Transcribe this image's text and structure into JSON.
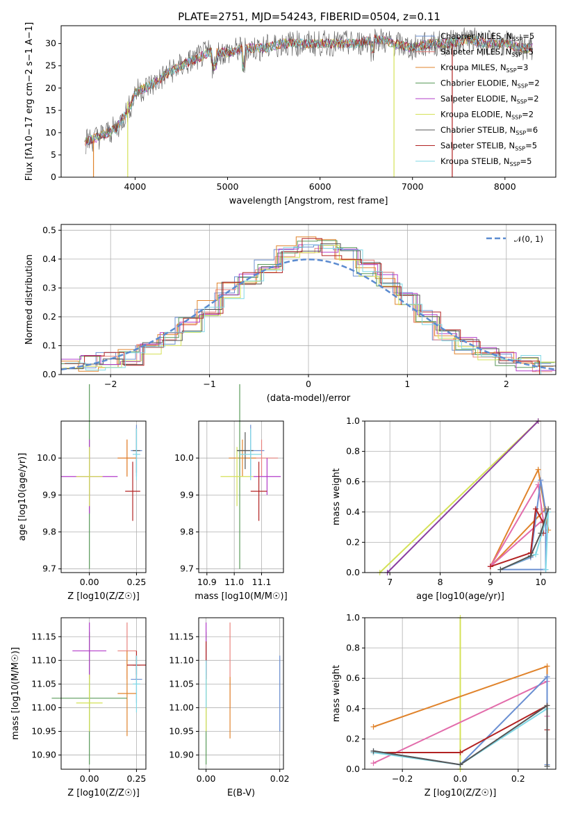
{
  "figure": {
    "title": "PLATE=2751, MJD=54243, FIBERID=0504, z=0.11"
  },
  "panels": {
    "spectrum": {
      "xlabel": "wavelength [Angstrom, rest frame]",
      "ylabel": "Flux [f_λ 10^-17 erg cm^-2 s^-1 A^-1]",
      "xticks": [
        "4000",
        "5000",
        "6000",
        "7000",
        "8000"
      ],
      "yticks": [
        "0",
        "5",
        "10",
        "15",
        "20",
        "25",
        "30"
      ]
    },
    "residuals": {
      "xlabel": "(data-model)/error",
      "ylabel": "Normed distribution",
      "xticks": [
        "−2",
        "−1",
        "0",
        "1",
        "2"
      ],
      "yticks": [
        "0.0",
        "0.1",
        "0.2",
        "0.3",
        "0.4",
        "0.5"
      ],
      "legend": "𝒩(0, 1)"
    },
    "age_z": {
      "xlabel": "Z [log10(Z/Z☉)]",
      "ylabel": "age [log10(age/yr)]",
      "xticks": [
        "0.00",
        "0.25"
      ],
      "yticks": [
        "9.7",
        "9.8",
        "9.9",
        "10.0"
      ]
    },
    "age_mass": {
      "xlabel": "mass [log10(M/M☉)]",
      "xticks": [
        "10.9",
        "11.0",
        "11.1"
      ],
      "yticks": [
        "9.7",
        "9.8",
        "9.9",
        "10.0"
      ]
    },
    "mw_age": {
      "xlabel": "age [log10(age/yr)]",
      "ylabel": "mass weight",
      "xticks": [
        "7",
        "8",
        "9",
        "10"
      ],
      "yticks": [
        "0.0",
        "0.2",
        "0.4",
        "0.6",
        "0.8",
        "1.0"
      ]
    },
    "mass_z": {
      "xlabel": "Z [log10(Z/Z☉)]",
      "ylabel": "mass [log10(M/M☉)]",
      "xticks": [
        "0.00",
        "0.25"
      ],
      "yticks": [
        "10.90",
        "10.95",
        "11.00",
        "11.05",
        "11.10",
        "11.15"
      ]
    },
    "mass_ebv": {
      "xlabel": "E(B-V)",
      "xticks": [
        "0.00",
        "0.02"
      ],
      "yticks": [
        "10.90",
        "10.95",
        "11.00",
        "11.05",
        "11.10",
        "11.15"
      ]
    },
    "mw_z": {
      "xlabel": "Z [log10(Z/Z☉)]",
      "ylabel": "mass weight",
      "xticks": [
        "−0.2",
        "0.0",
        "0.2"
      ],
      "yticks": [
        "0.0",
        "0.2",
        "0.4",
        "0.6",
        "0.8",
        "1.0"
      ]
    }
  },
  "chart_data": [
    {
      "type": "line",
      "title": "PLATE=2751, MJD=54243, FIBERID=0504, z=0.11",
      "xlabel": "wavelength [Angstrom, rest frame]",
      "ylabel": "Flux [fλ10−17 erg cm−2 s−1 A−1]",
      "xlim": [
        3200,
        8550
      ],
      "ylim": [
        0,
        34
      ],
      "legend_position": "top-right",
      "series": [
        {
          "name": "Chabrier MILES, N_SSP=5",
          "color": "#6a8fd2",
          "x": [
            3450,
            3600,
            3800,
            3950,
            4000,
            4200,
            4400,
            4600,
            4800,
            5000,
            5200,
            5400,
            5600,
            5800,
            6000,
            6200,
            6400,
            6600,
            6800,
            7000,
            7200,
            7400,
            7600,
            7800,
            8000,
            8200,
            8300
          ],
          "y": [
            8,
            9,
            11,
            16,
            19,
            21,
            24,
            26,
            28,
            28,
            29,
            29,
            30,
            30,
            30,
            30,
            30,
            31,
            30,
            29,
            30,
            30,
            31,
            30,
            30,
            29,
            29
          ]
        },
        {
          "name": "Salpeter MILES, N_SSP=5",
          "color": "#e8837e"
        },
        {
          "name": "Kroupa MILES, N_SSP=3",
          "color": "#e0832b"
        },
        {
          "name": "Chabrier ELODIE, N_SSP=2",
          "color": "#5a9a5a"
        },
        {
          "name": "Salpeter ELODIE, N_SSP=2",
          "color": "#b23cc9"
        },
        {
          "name": "Kroupa ELODIE, N_SSP=2",
          "color": "#d4e157"
        },
        {
          "name": "Chabrier STELIB, N_SSP=6",
          "color": "#555555"
        },
        {
          "name": "Salpeter STELIB, N_SSP=5",
          "color": "#b22222"
        },
        {
          "name": "Kroupa STELIB, N_SSP=5",
          "color": "#7fd8e6"
        }
      ],
      "drops_to_zero_at": [
        3550,
        3920,
        6800,
        7430
      ]
    },
    {
      "type": "line",
      "xlabel": "(data-model)/error",
      "ylabel": "Normed distribution",
      "xlim": [
        -2.5,
        2.5
      ],
      "ylim": [
        0,
        0.52
      ],
      "grid": true,
      "legend_position": "top-right",
      "series": [
        {
          "name": "𝒩(0, 1)",
          "style": "dashed",
          "color": "#5b8bd0"
        }
      ],
      "histogram_bins": [
        -2.5,
        -2.3,
        -2.1,
        -1.9,
        -1.7,
        -1.5,
        -1.3,
        -1.1,
        -0.9,
        -0.7,
        -0.5,
        -0.3,
        -0.1,
        0.1,
        0.3,
        0.5,
        0.7,
        0.9,
        1.1,
        1.3,
        1.5,
        1.7,
        1.9,
        2.1,
        2.3,
        2.5
      ],
      "histogram_values": [
        0.03,
        0.04,
        0.05,
        0.06,
        0.09,
        0.12,
        0.17,
        0.23,
        0.29,
        0.34,
        0.37,
        0.42,
        0.45,
        0.44,
        0.42,
        0.37,
        0.33,
        0.27,
        0.2,
        0.14,
        0.1,
        0.08,
        0.05,
        0.04,
        0.02
      ]
    },
    {
      "type": "scatter",
      "xlabel": "Z [log10(Z/Z☉)]",
      "ylabel": "age [log10(age/yr)]",
      "xlim": [
        -0.15,
        0.3
      ],
      "ylim": [
        9.69,
        10.1
      ],
      "grid": true,
      "points": [
        {
          "color": "#6a8fd2",
          "x": 0.25,
          "y": 10.02,
          "xerr": 0.03,
          "yerr": 0.07
        },
        {
          "color": "#e8837e",
          "x": 0.2,
          "y": 10.0,
          "xerr": 0.05,
          "yerr": 0.05
        },
        {
          "color": "#e0832b",
          "x": 0.2,
          "y": 10.0,
          "xerr": 0.05,
          "yerr": 0.05
        },
        {
          "color": "#5a9a5a",
          "x": 0.0,
          "y": 9.95,
          "xerr": 0.0,
          "yerr": 0.25
        },
        {
          "color": "#b23cc9",
          "x": 0.0,
          "y": 9.95,
          "xerr": 0.15,
          "yerr": 0.1
        },
        {
          "color": "#d4e157",
          "x": 0.0,
          "y": 9.95,
          "xerr": 0.07,
          "yerr": 0.08
        },
        {
          "color": "#555555",
          "x": 0.25,
          "y": 10.02,
          "xerr": 0.02,
          "yerr": 0.06
        },
        {
          "color": "#b22222",
          "x": 0.23,
          "y": 9.91,
          "xerr": 0.04,
          "yerr": 0.08
        },
        {
          "color": "#7fd8e6",
          "x": 0.25,
          "y": 10.01,
          "xerr": 0.02,
          "yerr": 0.07
        }
      ]
    },
    {
      "type": "scatter",
      "xlabel": "mass [log10(M/M☉)]",
      "xlim": [
        10.87,
        11.18
      ],
      "ylim": [
        9.69,
        10.1
      ],
      "grid": true,
      "points": [
        {
          "color": "#6a8fd2",
          "x": 11.06,
          "y": 10.02,
          "xerr": 0.05,
          "yerr": 0.07
        },
        {
          "color": "#e8837e",
          "x": 11.1,
          "y": 10.0,
          "xerr": 0.06,
          "yerr": 0.05
        },
        {
          "color": "#e0832b",
          "x": 11.03,
          "y": 10.0,
          "xerr": 0.05,
          "yerr": 0.05
        },
        {
          "color": "#5a9a5a",
          "x": 11.02,
          "y": 9.95,
          "xerr": 0.0,
          "yerr": 0.25
        },
        {
          "color": "#b23cc9",
          "x": 11.12,
          "y": 9.95,
          "xerr": 0.05,
          "yerr": 0.05
        },
        {
          "color": "#d4e157",
          "x": 11.01,
          "y": 9.95,
          "xerr": 0.06,
          "yerr": 0.08
        },
        {
          "color": "#555555",
          "x": 11.04,
          "y": 10.02,
          "xerr": 0.03,
          "yerr": 0.05
        },
        {
          "color": "#b22222",
          "x": 11.09,
          "y": 9.91,
          "xerr": 0.03,
          "yerr": 0.08
        },
        {
          "color": "#7fd8e6",
          "x": 11.06,
          "y": 10.01,
          "xerr": 0.04,
          "yerr": 0.07
        }
      ]
    },
    {
      "type": "line",
      "xlabel": "age [log10(age/yr)]",
      "ylabel": "mass weight",
      "xlim": [
        6.5,
        10.3
      ],
      "ylim": [
        0,
        1.0
      ],
      "grid": true,
      "series": [
        {
          "color": "#d4e157",
          "x": [
            6.8,
            9.95
          ],
          "y": [
            0,
            1.0
          ]
        },
        {
          "color": "#8a3fa0",
          "x": [
            6.95,
            9.95
          ],
          "y": [
            0,
            1.0
          ]
        },
        {
          "color": "#e0832b",
          "x": [
            9.0,
            9.95,
            10.15,
            10.1,
            9.0
          ],
          "y": [
            0.04,
            0.68,
            0.28,
            0.42,
            0.04
          ]
        },
        {
          "color": "#e26cab",
          "x": [
            9.0,
            9.95,
            10.05,
            9.0
          ],
          "y": [
            0.04,
            0.58,
            0.35,
            0.04
          ]
        },
        {
          "color": "#6a8fd2",
          "x": [
            9.2,
            9.8,
            10.0,
            10.1,
            10.1,
            9.2
          ],
          "y": [
            0.02,
            0.1,
            0.61,
            0.4,
            0.02,
            0.02
          ]
        },
        {
          "color": "#b22222",
          "x": [
            9.0,
            9.8,
            9.9,
            10.05,
            10.05
          ],
          "y": [
            0.04,
            0.13,
            0.42,
            0.33,
            0.26
          ]
        },
        {
          "color": "#7fd8e6",
          "x": [
            9.2,
            9.9,
            10.15,
            10.1
          ],
          "y": [
            0.02,
            0.12,
            0.4,
            0.02
          ]
        },
        {
          "color": "#555555",
          "x": [
            9.2,
            9.8,
            10.0,
            10.15
          ],
          "y": [
            0.02,
            0.11,
            0.26,
            0.42
          ]
        }
      ]
    },
    {
      "type": "scatter",
      "xlabel": "Z [log10(Z/Z☉)]",
      "ylabel": "mass [log10(M/M☉)]",
      "xlim": [
        -0.15,
        0.3
      ],
      "ylim": [
        10.87,
        11.19
      ],
      "grid": true,
      "points": [
        {
          "color": "#6a8fd2",
          "x": 0.25,
          "y": 11.06,
          "xerr": 0.03,
          "yerr": 0.05
        },
        {
          "color": "#e8837e",
          "x": 0.2,
          "y": 11.12,
          "xerr": 0.05,
          "yerr": 0.06
        },
        {
          "color": "#e0832b",
          "x": 0.2,
          "y": 11.03,
          "xerr": 0.05,
          "yerr": 0.09
        },
        {
          "color": "#5a9a5a",
          "x": 0.0,
          "y": 11.02,
          "xerr": 0.2,
          "yerr": 0.14
        },
        {
          "color": "#b23cc9",
          "x": 0.0,
          "y": 11.12,
          "xerr": 0.09,
          "yerr": 0.06
        },
        {
          "color": "#d4e157",
          "x": 0.0,
          "y": 11.01,
          "xerr": 0.07,
          "yerr": 0.06
        },
        {
          "color": "#555555",
          "x": 0.25,
          "y": 11.09,
          "xerr": 0.02,
          "yerr": 0.02
        },
        {
          "color": "#b22222",
          "x": 0.25,
          "y": 11.09,
          "xerr": 0.05,
          "yerr": 0.03
        },
        {
          "color": "#7fd8e6",
          "x": 0.25,
          "y": 11.05,
          "xerr": 0.02,
          "yerr": 0.06
        }
      ]
    },
    {
      "type": "scatter",
      "xlabel": "E(B-V)",
      "xlim": [
        -0.002,
        0.021
      ],
      "ylim": [
        10.87,
        11.19
      ],
      "grid": true,
      "points": [
        {
          "color": "#6a8fd2",
          "x": 0.02,
          "y": 11.03,
          "xerr": 0.0,
          "yerr": 0.08
        },
        {
          "color": "#e8837e",
          "x": 0.0065,
          "y": 11.09,
          "xerr": 0.0,
          "yerr": 0.09
        },
        {
          "color": "#e0832b",
          "x": 0.0065,
          "y": 11.0,
          "xerr": 0.0,
          "yerr": 0.065
        },
        {
          "color": "#5a9a5a",
          "x": 0.0,
          "y": 11.02,
          "xerr": 0.0,
          "yerr": 0.14
        },
        {
          "color": "#b23cc9",
          "x": 0.0,
          "y": 11.12,
          "xerr": 0.0,
          "yerr": 0.06
        },
        {
          "color": "#d4e157",
          "x": 0.0,
          "y": 11.01,
          "xerr": 0.0,
          "yerr": 0.06
        },
        {
          "color": "#b22222",
          "x": 0.0,
          "y": 11.1,
          "xerr": 0.0,
          "yerr": 0.04
        },
        {
          "color": "#7fd8e6",
          "x": 0.0,
          "y": 11.05,
          "xerr": 0.0,
          "yerr": 0.05
        }
      ]
    },
    {
      "type": "line",
      "xlabel": "Z [log10(Z/Z☉)]",
      "ylabel": "mass weight",
      "xlim": [
        -0.33,
        0.33
      ],
      "ylim": [
        0,
        1.0
      ],
      "grid": true,
      "series": [
        {
          "color": "#d4e157",
          "x": [
            0.0,
            0.0
          ],
          "y": [
            0,
            1.0
          ]
        },
        {
          "color": "#e0832b",
          "x": [
            -0.3,
            0.3,
            0.3
          ],
          "y": [
            0.28,
            0.68,
            0.42
          ]
        },
        {
          "color": "#e26cab",
          "x": [
            -0.3,
            0.3,
            0.3
          ],
          "y": [
            0.04,
            0.58,
            0.35
          ]
        },
        {
          "color": "#6a8fd2",
          "x": [
            -0.3,
            0.0,
            0.3,
            0.3
          ],
          "y": [
            0.12,
            0.03,
            0.61,
            0.03
          ]
        },
        {
          "color": "#b22222",
          "x": [
            -0.3,
            0.0,
            0.3,
            0.3
          ],
          "y": [
            0.11,
            0.11,
            0.42,
            0.26
          ]
        },
        {
          "color": "#7fd8e6",
          "x": [
            -0.3,
            0.0,
            0.3,
            0.3
          ],
          "y": [
            0.11,
            0.03,
            0.4,
            0.02
          ]
        },
        {
          "color": "#555555",
          "x": [
            -0.3,
            0.0,
            0.3,
            0.3
          ],
          "y": [
            0.12,
            0.03,
            0.42,
            0.02
          ]
        }
      ]
    }
  ]
}
